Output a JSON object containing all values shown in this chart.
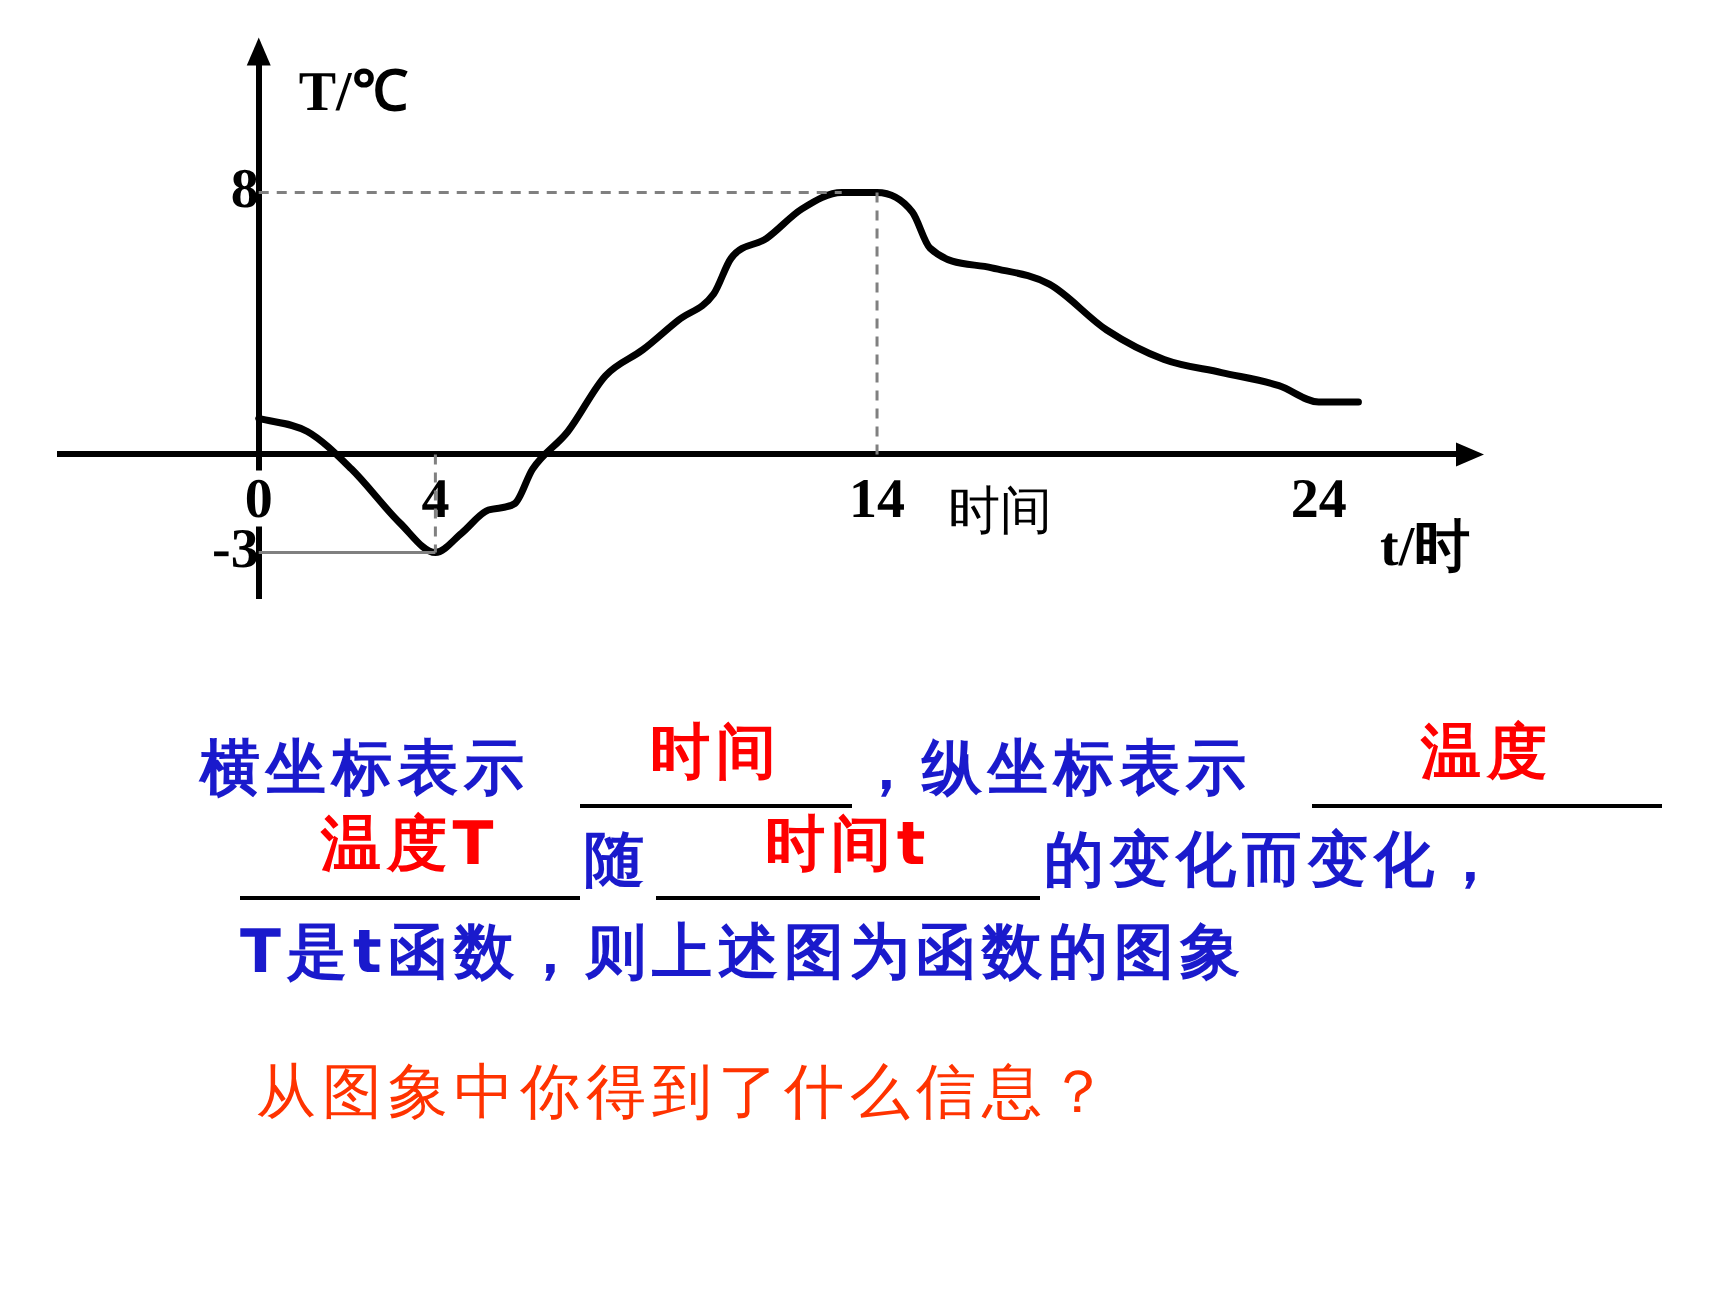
{
  "chart_data": {
    "type": "line",
    "xlabel": "t/时",
    "ylabel": "T/℃",
    "x": [
      0,
      1.1,
      2.1,
      3.2,
      4,
      4.6,
      5.2,
      5.8,
      6.2,
      7,
      7.85,
      8.7,
      9.5,
      10.3,
      10.7,
      11.5,
      12.3,
      13.2,
      14,
      14.8,
      15.2,
      16.6,
      17.9,
      19.2,
      20.5,
      21.8,
      23.1,
      24,
      24.9
    ],
    "series": [
      {
        "color": "#000000",
        "values": [
          1.1,
          0.7,
          -0.45,
          -2.1,
          -3,
          -2.4,
          -1.7,
          -1.5,
          -0.45,
          0.7,
          2.4,
          3.2,
          4.1,
          4.9,
          6,
          6.6,
          7.5,
          8,
          8,
          7.4,
          6.3,
          5.7,
          5.2,
          3.8,
          2.9,
          2.5,
          2.1,
          1.6,
          1.6
        ]
      }
    ],
    "xlim": [
      -4.5,
      27.2
    ],
    "xticks": [
      0,
      4,
      14,
      24
    ],
    "ylim": [
      -4.4,
      12
    ],
    "yticks": [
      -3,
      8
    ],
    "grid": false,
    "legend": false,
    "marker": "none",
    "line_style": "solid",
    "ref_lines": [
      {
        "axis": "x",
        "value": 14,
        "color": "#808080",
        "line_style": "dashed"
      },
      {
        "axis": "y",
        "value": 8,
        "color": "#808080",
        "line_style": "dashed"
      },
      {
        "axis": "x",
        "value": 4,
        "color": "#808080",
        "line_style": "dashed"
      },
      {
        "axis": "y",
        "value": -3,
        "color": "#808080",
        "line_style": "solid"
      }
    ],
    "annotations": [
      "时间",
      "横坐标表示",
      "时间",
      "，纵坐标表示",
      "温度",
      "温度T",
      "随",
      "时间t",
      "的变化而变化，",
      "T是t函数，则上述图为函数的图象",
      "从图象中你得到了什么信息？"
    ]
  }
}
